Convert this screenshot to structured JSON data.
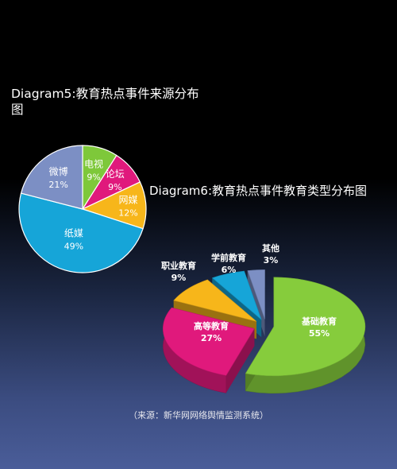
{
  "chart_data": [
    {
      "type": "pie",
      "title": "Diagram5:教育热点事件来源分布图",
      "categories": [
        "电视",
        "论坛",
        "网媒",
        "纸媒",
        "微博"
      ],
      "values": [
        9,
        9,
        12,
        49,
        21
      ],
      "labels": [
        "9%",
        "9%",
        "12%",
        "49%",
        "21%"
      ],
      "colors": [
        "#7ec83a",
        "#e0197c",
        "#f7b61a",
        "#16a5d8",
        "#7c8fc4"
      ]
    },
    {
      "type": "pie",
      "title": "Diagram6:教育热点事件教育类型分布图",
      "categories": [
        "基础教育",
        "高等教育",
        "职业教育",
        "学前教育",
        "其他"
      ],
      "values": [
        55,
        27,
        9,
        6,
        3
      ],
      "labels": [
        "55%",
        "27%",
        "9%",
        "6%",
        "3%"
      ],
      "colors": [
        "#86cc3c",
        "#e0197c",
        "#f7b61a",
        "#16a5d8",
        "#7c8fc4"
      ]
    }
  ],
  "source_note": "（来源：新华网网络舆情监测系统）"
}
